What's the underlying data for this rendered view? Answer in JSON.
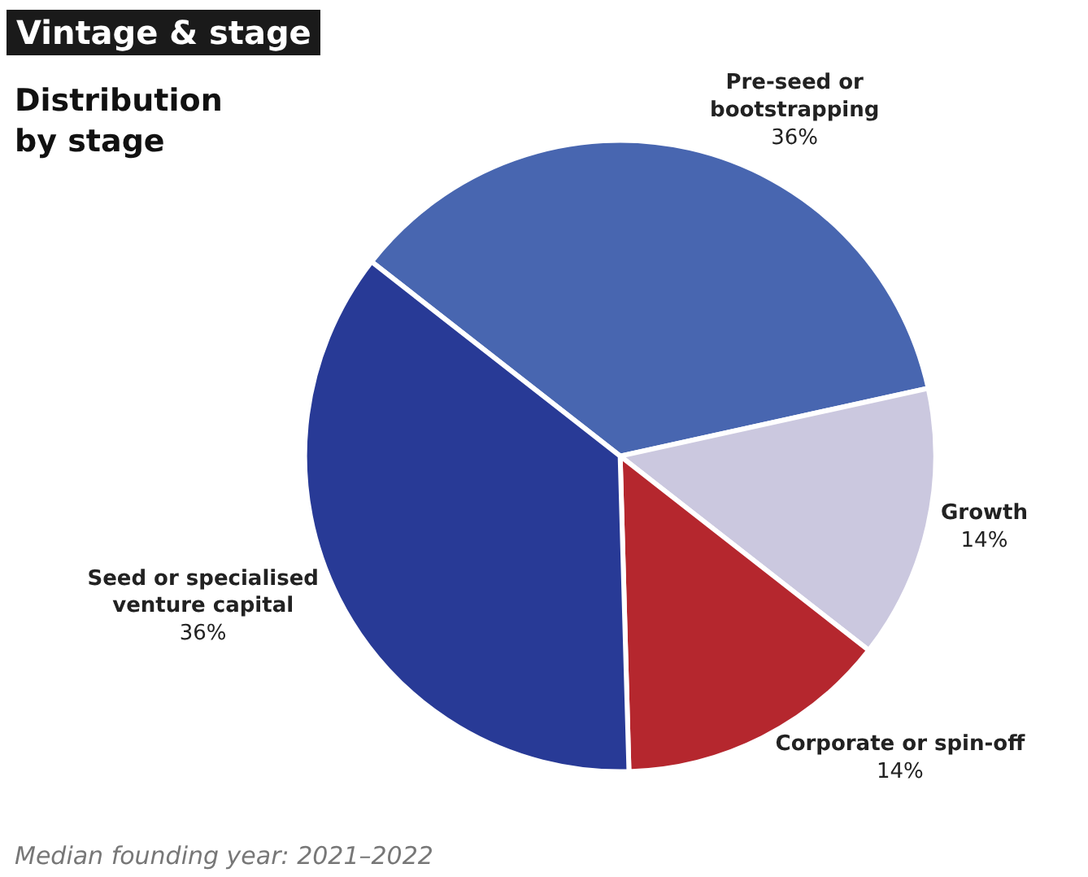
{
  "chart_data": {
    "type": "pie",
    "title": "Vintage & stage",
    "subtitle": "Distribution by stage",
    "categories": [
      "Pre-seed or bootstrapping",
      "Growth",
      "Corporate or spin-off",
      "Seed or specialised venture capital"
    ],
    "values": [
      36,
      14,
      14,
      36
    ],
    "colors": [
      "#4866b0",
      "#cbc8df",
      "#b5272e",
      "#283a96"
    ],
    "value_labels": [
      "36%",
      "14%",
      "14%",
      "36%"
    ],
    "legend": false,
    "annotations": [
      "Median founding year: 2021–2022"
    ]
  }
}
